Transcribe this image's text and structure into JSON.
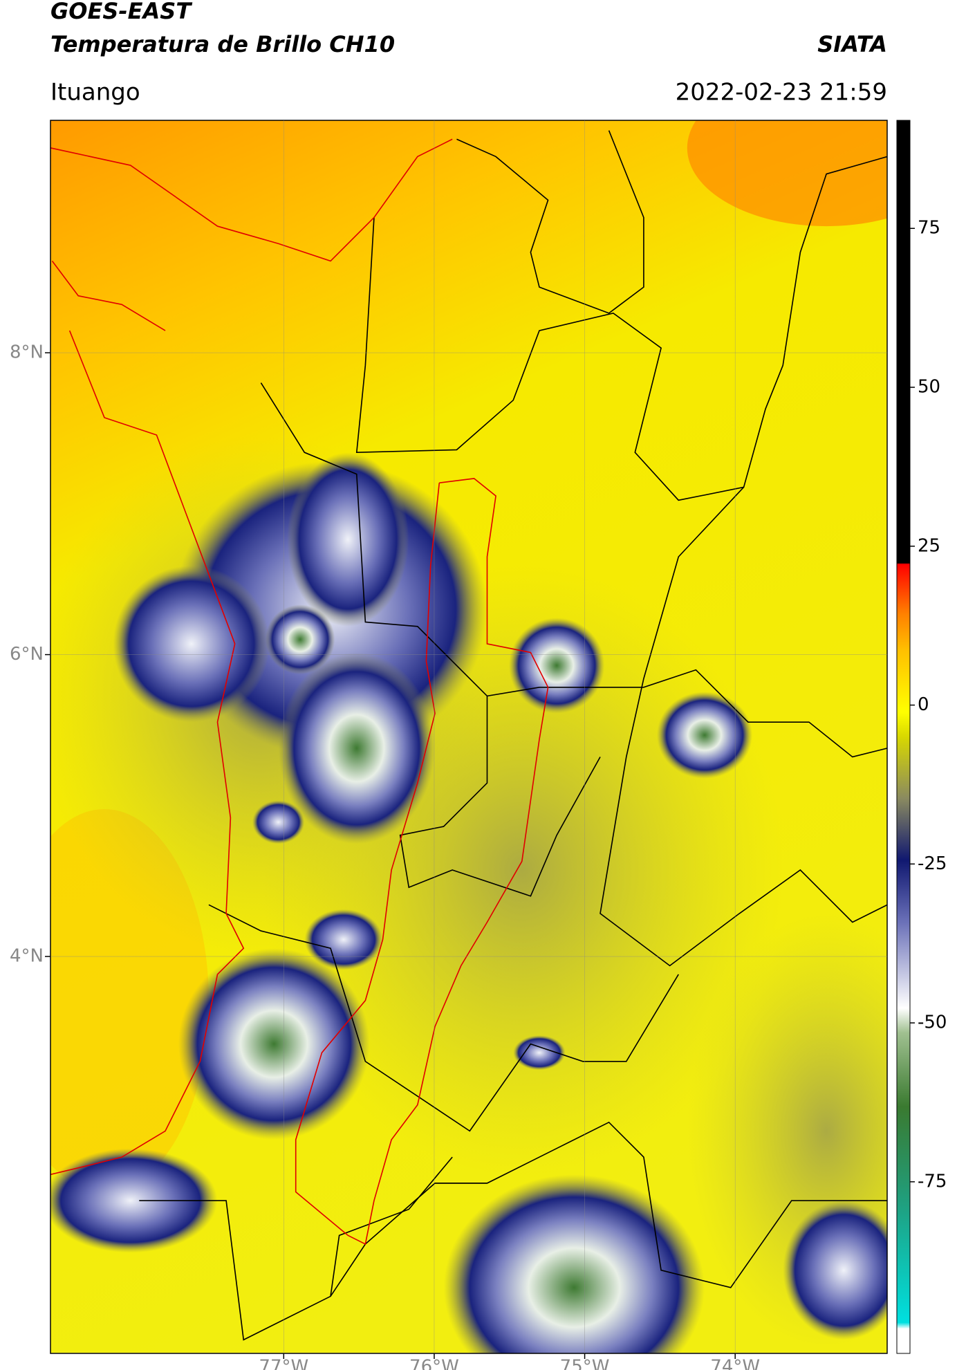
{
  "header": {
    "title": "GOES-EAST",
    "subtitle": "Temperatura de Brillo CH10",
    "source": "SIATA",
    "location": "Ituango",
    "datetime": "2022-02-23 21:59"
  },
  "map": {
    "xlim": [
      -78.55,
      -72.99
    ],
    "ylim": [
      1.37,
      9.54
    ],
    "lat_ticks": [
      {
        "value": 8,
        "label": "8°N"
      },
      {
        "value": 6,
        "label": "6°N"
      },
      {
        "value": 4,
        "label": "4°N"
      }
    ],
    "lon_ticks": [
      {
        "value": -77,
        "label": "77°W"
      },
      {
        "value": -76,
        "label": "76°W"
      },
      {
        "value": -75,
        "label": "75°W"
      },
      {
        "value": -74,
        "label": "74°W"
      }
    ]
  },
  "colorbar": {
    "lim": [
      -102,
      92
    ],
    "ticks": [
      75,
      50,
      25,
      0,
      -25,
      -50,
      -75
    ]
  }
}
